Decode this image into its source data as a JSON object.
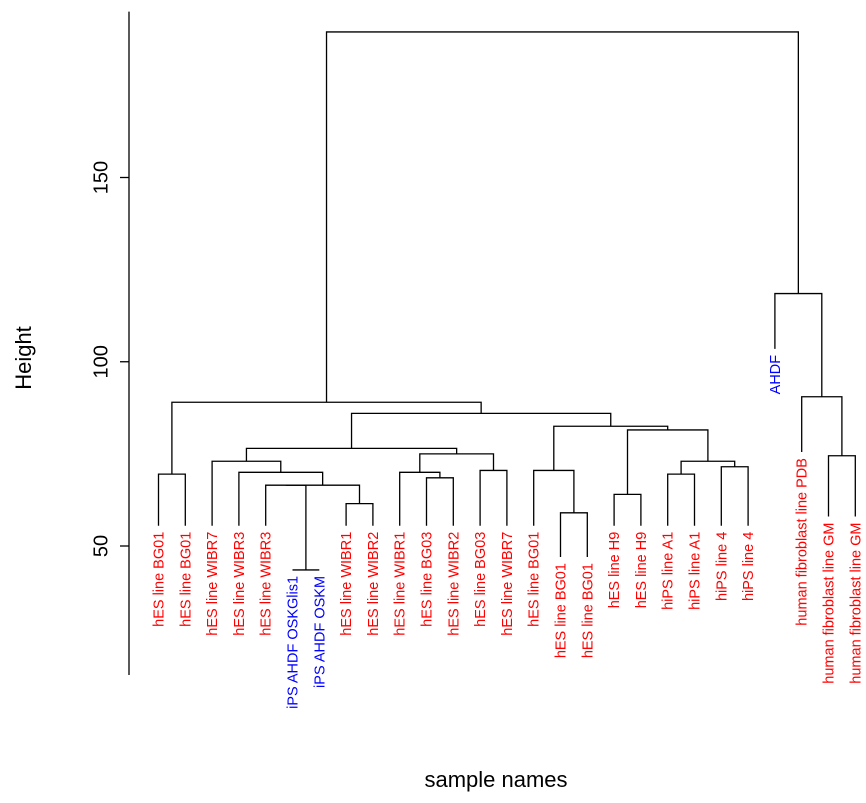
{
  "chart_data": {
    "type": "dendrogram",
    "title": "",
    "xlabel": "sample names",
    "ylabel": "Height",
    "ylim": [
      15,
      195
    ],
    "yticks": [
      50,
      100,
      150
    ],
    "colors": {
      "hES": "#ff0000",
      "hiPS": "#ff0000",
      "fibroblast": "#ff0000",
      "AHDF": "#0000ff",
      "iPS_AHDF": "#0000ff",
      "lines": "#000000"
    },
    "leaves": [
      {
        "label": "hES line BG01",
        "color": "#ff0000"
      },
      {
        "label": "hES line BG01",
        "color": "#ff0000"
      },
      {
        "label": "hES line WIBR7",
        "color": "#ff0000"
      },
      {
        "label": "hES line WIBR3",
        "color": "#ff0000"
      },
      {
        "label": "hES line WIBR3",
        "color": "#ff0000"
      },
      {
        "label": "iPS AHDF OSKGlis1",
        "color": "#0000ff"
      },
      {
        "label": "iPS AHDF OSKM",
        "color": "#0000ff"
      },
      {
        "label": "hES line WIBR1",
        "color": "#ff0000"
      },
      {
        "label": "hES line WIBR2",
        "color": "#ff0000"
      },
      {
        "label": "hES line WIBR1",
        "color": "#ff0000"
      },
      {
        "label": "hES line BG03",
        "color": "#ff0000"
      },
      {
        "label": "hES line WIBR2",
        "color": "#ff0000"
      },
      {
        "label": "hES line BG03",
        "color": "#ff0000"
      },
      {
        "label": "hES line WIBR7",
        "color": "#ff0000"
      },
      {
        "label": "hES line BG01",
        "color": "#ff0000"
      },
      {
        "label": "hES line BG01",
        "color": "#ff0000"
      },
      {
        "label": "hES line BG01",
        "color": "#ff0000"
      },
      {
        "label": "hES line H9",
        "color": "#ff0000"
      },
      {
        "label": "hES line H9",
        "color": "#ff0000"
      },
      {
        "label": "hiPS line A1",
        "color": "#ff0000"
      },
      {
        "label": "hiPS line A1",
        "color": "#ff0000"
      },
      {
        "label": "hiPS line 4",
        "color": "#ff0000"
      },
      {
        "label": "hiPS line 4",
        "color": "#ff0000"
      },
      {
        "label": "AHDF",
        "color": "#0000ff"
      },
      {
        "label": "human fibroblast line PDB",
        "color": "#ff0000"
      },
      {
        "label": "human fibroblast line GM",
        "color": "#ff0000"
      },
      {
        "label": "human fibroblast line GM",
        "color": "#ff0000"
      }
    ],
    "merges": [
      {
        "children": [
          0,
          1
        ],
        "height": 69.5
      },
      {
        "children": [
          5,
          6
        ],
        "height": 43.5
      },
      {
        "children": [
          4,
          "m1"
        ],
        "height": 66.5
      },
      {
        "children": [
          7,
          8
        ],
        "height": 61.5
      },
      {
        "children": [
          "m2",
          "m3"
        ],
        "height": 66.5
      },
      {
        "children": [
          3,
          "m4"
        ],
        "height": 70.0
      },
      {
        "children": [
          2,
          "m5"
        ],
        "height": 73.0
      },
      {
        "children": [
          10,
          11
        ],
        "height": 68.5
      },
      {
        "children": [
          9,
          "m7"
        ],
        "height": 70.0
      },
      {
        "children": [
          12,
          13
        ],
        "height": 70.5
      },
      {
        "children": [
          "m8",
          "m9"
        ],
        "height": 75.0
      },
      {
        "children": [
          "m6",
          "m10"
        ],
        "height": 76.5
      },
      {
        "children": [
          15,
          16
        ],
        "height": 59.0
      },
      {
        "children": [
          14,
          "m12"
        ],
        "height": 70.5
      },
      {
        "children": [
          17,
          18
        ],
        "height": 64.0
      },
      {
        "children": [
          19,
          20
        ],
        "height": 69.5
      },
      {
        "children": [
          21,
          22
        ],
        "height": 71.5
      },
      {
        "children": [
          "m15",
          "m16"
        ],
        "height": 73.0
      },
      {
        "children": [
          "m14",
          "m17"
        ],
        "height": 81.5
      },
      {
        "children": [
          "m13",
          "m18"
        ],
        "height": 82.5
      },
      {
        "children": [
          "m11",
          "m19"
        ],
        "height": 86.0
      },
      {
        "children": [
          "m0",
          "m20"
        ],
        "height": 89.0
      },
      {
        "children": [
          25,
          26
        ],
        "height": 74.5
      },
      {
        "children": [
          24,
          "m22"
        ],
        "height": 90.5
      },
      {
        "children": [
          23,
          "m23"
        ],
        "height": 118.5
      },
      {
        "children": [
          "m21",
          "m24"
        ],
        "height": 189.5
      }
    ],
    "leaf_heights": [
      55.5,
      55.5,
      55.5,
      55.5,
      55.5,
      43.5,
      43.5,
      55.5,
      55.5,
      55.5,
      55.5,
      55.5,
      55.5,
      55.5,
      55.5,
      47.0,
      47.0,
      55.5,
      55.5,
      55.5,
      55.5,
      55.5,
      55.5,
      103.5,
      75.5,
      58.0,
      58.0
    ]
  }
}
